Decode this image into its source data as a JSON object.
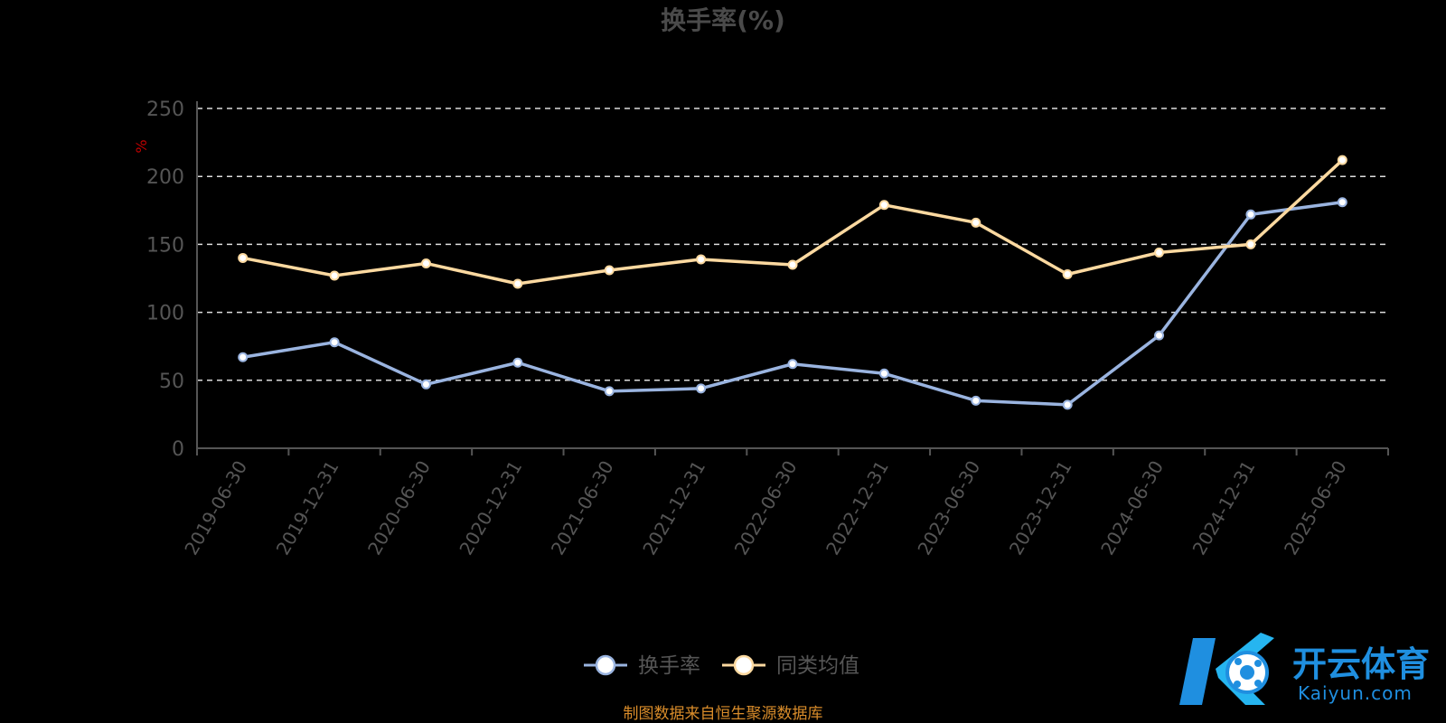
{
  "chart_data": {
    "type": "line",
    "title": "换手率(%)",
    "ylabel": "%",
    "ylim": [
      0,
      250
    ],
    "yticks": [
      0,
      50,
      100,
      150,
      200,
      250
    ],
    "grid": true,
    "legend_position": "bottom-center",
    "categories": [
      "2019-06-30",
      "2019-12-31",
      "2020-06-30",
      "2020-12-31",
      "2021-06-30",
      "2021-12-31",
      "2022-06-30",
      "2022-12-31",
      "2023-06-30",
      "2023-12-31",
      "2024-06-30",
      "2024-12-31",
      "2025-06-30"
    ],
    "series": [
      {
        "name": "换手率",
        "color": "#9ab4e0",
        "values": [
          67,
          78,
          47,
          63,
          42,
          44,
          62,
          55,
          35,
          32,
          83,
          172,
          181
        ]
      },
      {
        "name": "同类均值",
        "color": "#fcd9a0",
        "values": [
          140,
          127,
          136,
          121,
          131,
          139,
          135,
          179,
          166,
          128,
          144,
          150,
          212
        ]
      }
    ]
  },
  "colors": {
    "background": "#000000",
    "title": "#4a4a4a",
    "axis_text": "#555555",
    "ylabel": "#c00000",
    "grid": "#dddddd",
    "axis_line": "#555555",
    "source": "#d98c2a",
    "watermark": "#1f8fe0"
  },
  "footer": {
    "source_text": "制图数据来自恒生聚源数据库"
  },
  "watermark": {
    "cn_text": "开云体育",
    "en_text": "Kaiyun.com"
  }
}
